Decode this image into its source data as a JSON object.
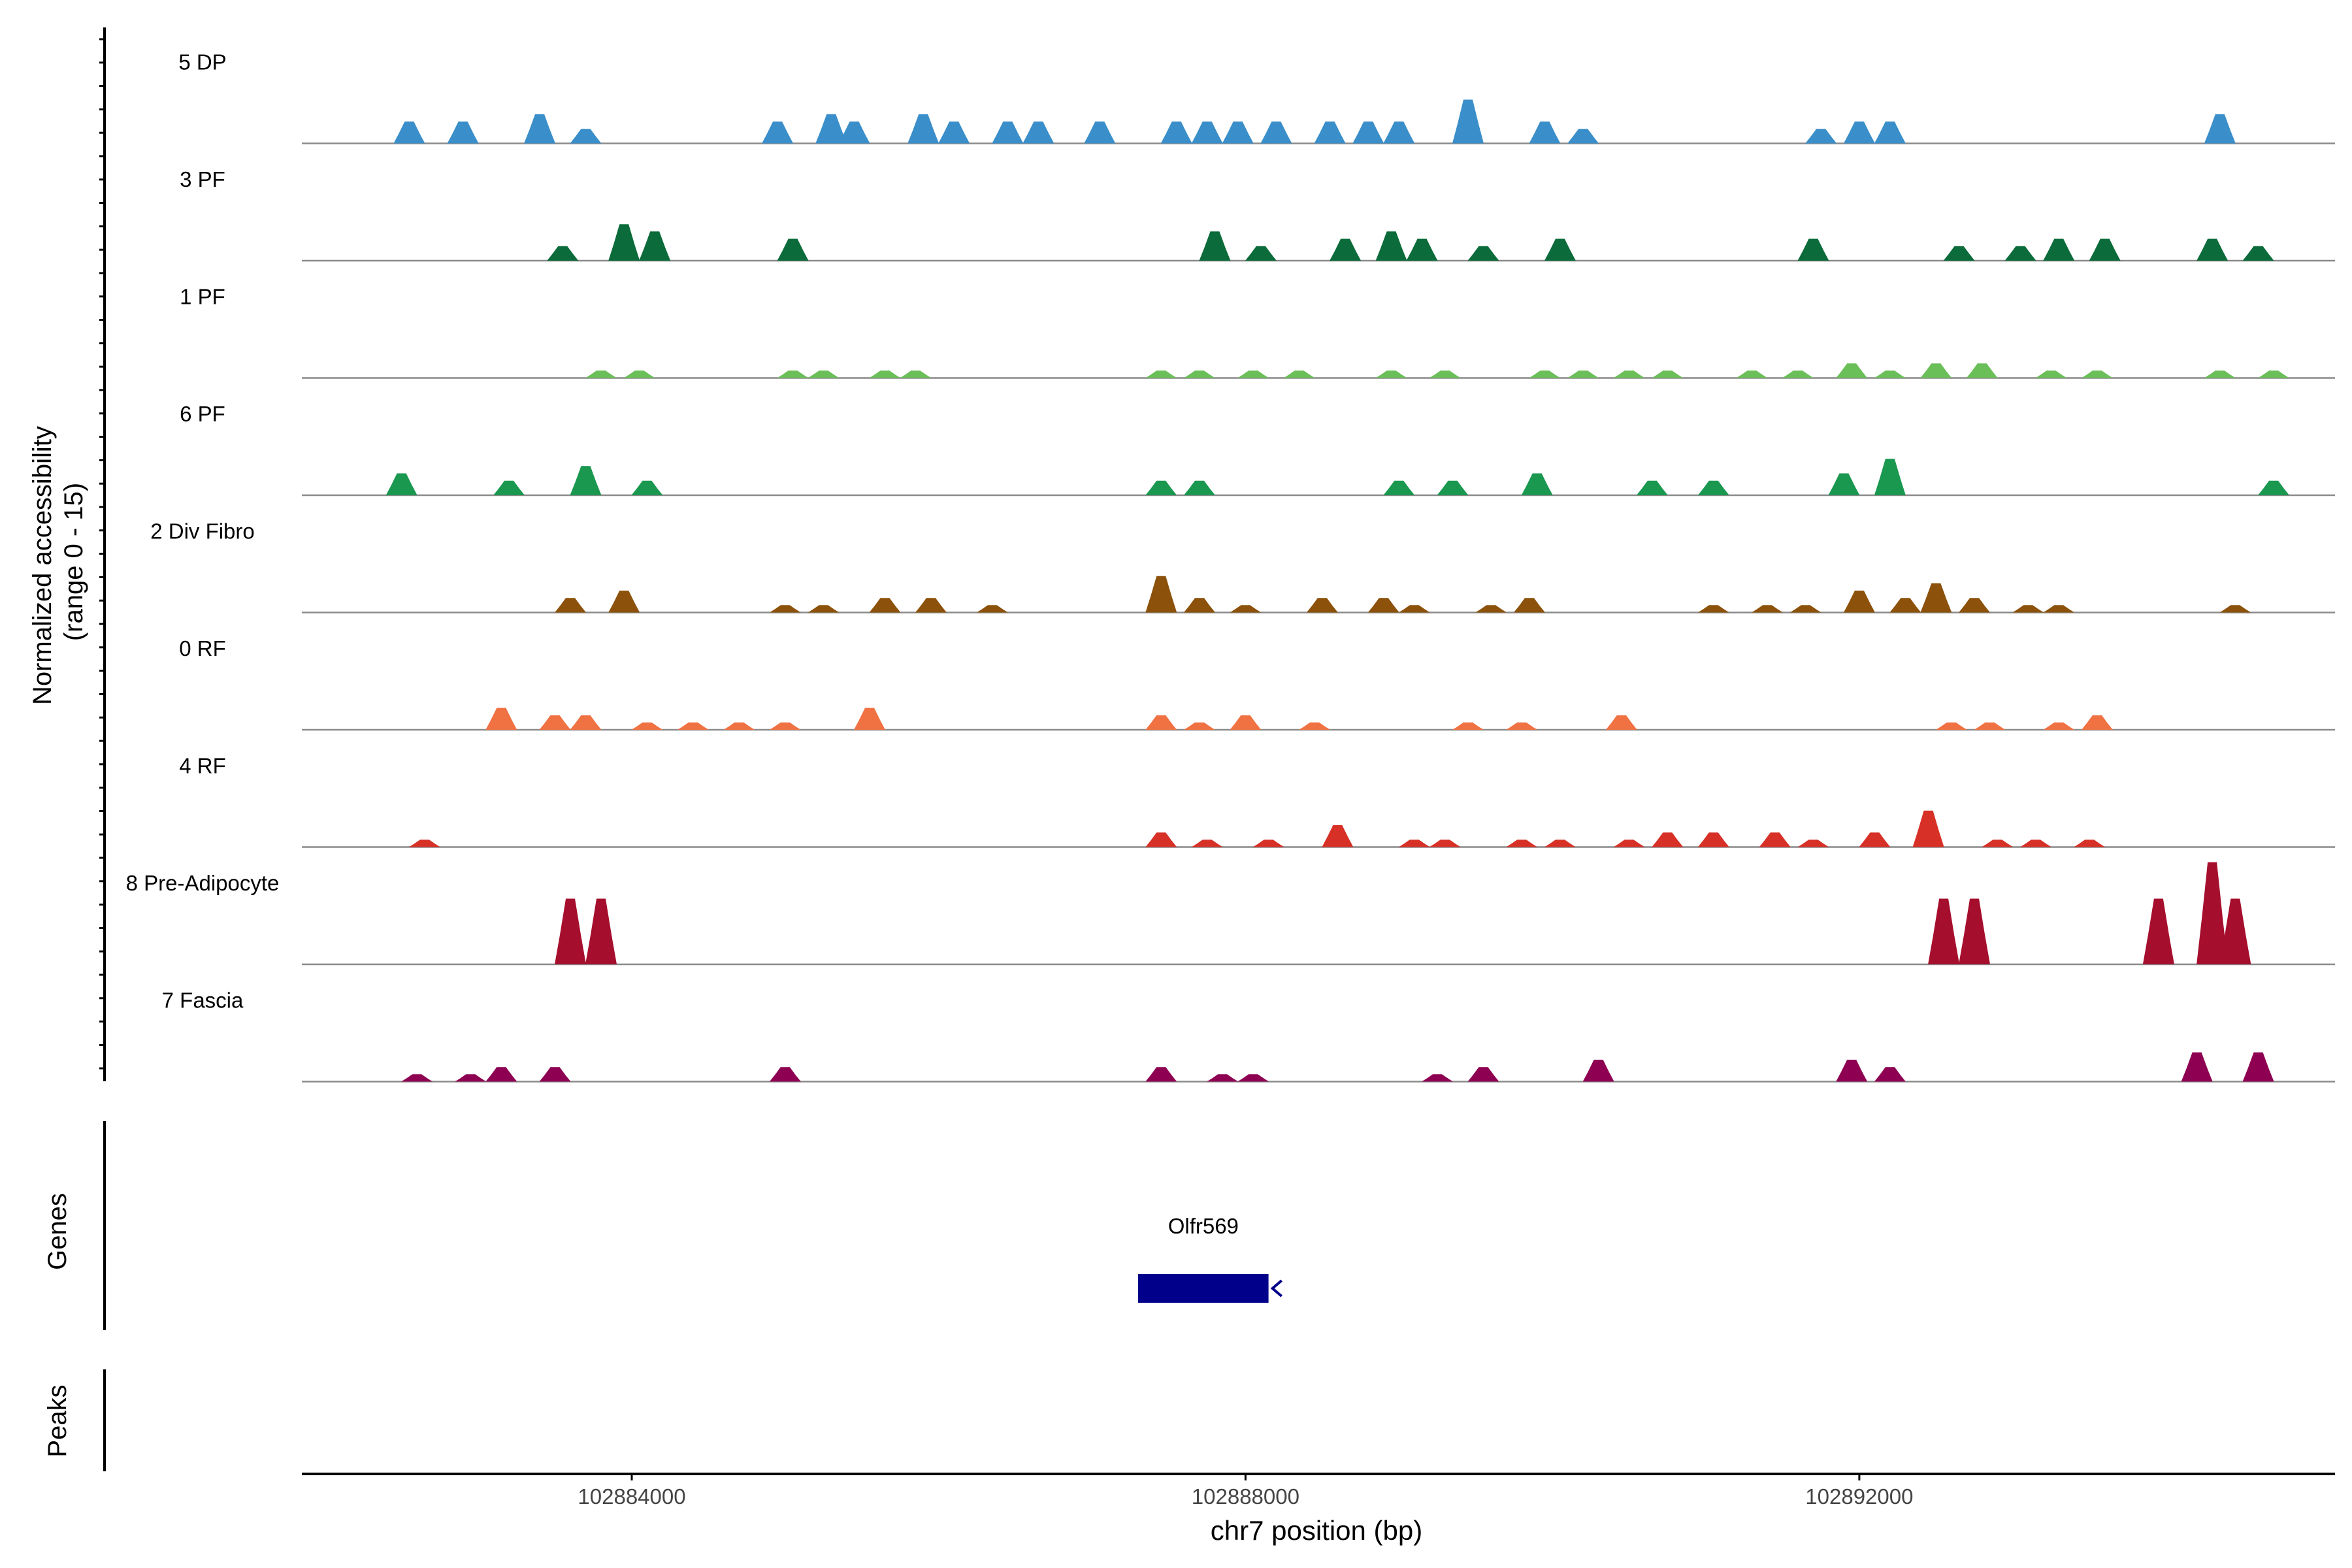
{
  "chart_data": {
    "type": "area",
    "title": "",
    "ylabel_line1": "Normalized accessibility",
    "ylabel_line2": "(range 0 - 15)",
    "ylim": [
      0,
      15
    ],
    "xlabel": "chr7 position (bp)",
    "xlim": [
      102881850,
      102895100
    ],
    "x_ticks": [
      {
        "value": 102884000,
        "label": "102884000"
      },
      {
        "value": 102888000,
        "label": "102888000"
      },
      {
        "value": 102892000,
        "label": "102892000"
      }
    ],
    "series": [
      {
        "name": "5 DP",
        "color": "#3a8ec9",
        "peaks": [
          [
            102882550,
            3
          ],
          [
            102882900,
            3
          ],
          [
            102883400,
            4
          ],
          [
            102883700,
            2
          ],
          [
            102884950,
            3
          ],
          [
            102885300,
            4
          ],
          [
            102885450,
            3
          ],
          [
            102885900,
            4
          ],
          [
            102886100,
            3
          ],
          [
            102886450,
            3
          ],
          [
            102886650,
            3
          ],
          [
            102887050,
            3
          ],
          [
            102887550,
            3
          ],
          [
            102887750,
            3
          ],
          [
            102887950,
            3
          ],
          [
            102888200,
            3
          ],
          [
            102888550,
            3
          ],
          [
            102888800,
            3
          ],
          [
            102889000,
            3
          ],
          [
            102889450,
            6
          ],
          [
            102889950,
            3
          ],
          [
            102890200,
            2
          ],
          [
            102891750,
            2
          ],
          [
            102892000,
            3
          ],
          [
            102892200,
            3
          ],
          [
            102894350,
            4
          ]
        ]
      },
      {
        "name": "3 PF",
        "color": "#0b6b3a",
        "peaks": [
          [
            102883550,
            2
          ],
          [
            102883950,
            5
          ],
          [
            102884150,
            4
          ],
          [
            102885050,
            3
          ],
          [
            102887800,
            4
          ],
          [
            102888100,
            2
          ],
          [
            102888650,
            3
          ],
          [
            102888950,
            4
          ],
          [
            102889150,
            3
          ],
          [
            102889550,
            2
          ],
          [
            102890050,
            3
          ],
          [
            102891700,
            3
          ],
          [
            102892650,
            2
          ],
          [
            102893050,
            2
          ],
          [
            102893300,
            3
          ],
          [
            102893600,
            3
          ],
          [
            102894300,
            3
          ],
          [
            102894600,
            2
          ]
        ]
      },
      {
        "name": "1 PF",
        "color": "#6bbf59",
        "peaks": [
          [
            102883800,
            1
          ],
          [
            102884050,
            1
          ],
          [
            102885050,
            1
          ],
          [
            102885250,
            1
          ],
          [
            102885650,
            1
          ],
          [
            102885850,
            1
          ],
          [
            102887450,
            1
          ],
          [
            102887700,
            1
          ],
          [
            102888050,
            1
          ],
          [
            102888350,
            1
          ],
          [
            102888950,
            1
          ],
          [
            102889300,
            1
          ],
          [
            102889950,
            1
          ],
          [
            102890200,
            1
          ],
          [
            102890500,
            1
          ],
          [
            102890750,
            1
          ],
          [
            102891300,
            1
          ],
          [
            102891600,
            1
          ],
          [
            102891950,
            2
          ],
          [
            102892200,
            1
          ],
          [
            102892500,
            2
          ],
          [
            102892800,
            2
          ],
          [
            102893250,
            1
          ],
          [
            102893550,
            1
          ],
          [
            102894350,
            1
          ],
          [
            102894700,
            1
          ]
        ]
      },
      {
        "name": "6 PF",
        "color": "#1a9850",
        "peaks": [
          [
            102882500,
            3
          ],
          [
            102883200,
            2
          ],
          [
            102883700,
            4
          ],
          [
            102884100,
            2
          ],
          [
            102887450,
            2
          ],
          [
            102887700,
            2
          ],
          [
            102889000,
            2
          ],
          [
            102889350,
            2
          ],
          [
            102889900,
            3
          ],
          [
            102890650,
            2
          ],
          [
            102891050,
            2
          ],
          [
            102891900,
            3
          ],
          [
            102892200,
            5
          ],
          [
            102894700,
            2
          ]
        ]
      },
      {
        "name": "2 Div Fibro",
        "color": "#8c510a",
        "peaks": [
          [
            102883600,
            2
          ],
          [
            102883950,
            3
          ],
          [
            102885000,
            1
          ],
          [
            102885250,
            1
          ],
          [
            102885650,
            2
          ],
          [
            102885950,
            2
          ],
          [
            102886350,
            1
          ],
          [
            102887450,
            5
          ],
          [
            102887700,
            2
          ],
          [
            102888000,
            1
          ],
          [
            102888500,
            2
          ],
          [
            102888900,
            2
          ],
          [
            102889100,
            1
          ],
          [
            102889600,
            1
          ],
          [
            102889850,
            2
          ],
          [
            102891050,
            1
          ],
          [
            102891400,
            1
          ],
          [
            102891650,
            1
          ],
          [
            102892000,
            3
          ],
          [
            102892300,
            2
          ],
          [
            102892500,
            4
          ],
          [
            102892750,
            2
          ],
          [
            102893100,
            1
          ],
          [
            102893300,
            1
          ],
          [
            102894450,
            1
          ]
        ]
      },
      {
        "name": "0 RF",
        "color": "#f07142",
        "peaks": [
          [
            102883150,
            3
          ],
          [
            102883500,
            2
          ],
          [
            102883700,
            2
          ],
          [
            102884100,
            1
          ],
          [
            102884400,
            1
          ],
          [
            102884700,
            1
          ],
          [
            102885000,
            1
          ],
          [
            102885550,
            3
          ],
          [
            102887450,
            2
          ],
          [
            102887700,
            1
          ],
          [
            102888000,
            2
          ],
          [
            102888450,
            1
          ],
          [
            102889450,
            1
          ],
          [
            102889800,
            1
          ],
          [
            102890450,
            2
          ],
          [
            102892600,
            1
          ],
          [
            102892850,
            1
          ],
          [
            102893300,
            1
          ],
          [
            102893550,
            2
          ]
        ]
      },
      {
        "name": "4 RF",
        "color": "#d73027",
        "peaks": [
          [
            102882650,
            1
          ],
          [
            102887450,
            2
          ],
          [
            102887750,
            1
          ],
          [
            102888150,
            1
          ],
          [
            102888600,
            3
          ],
          [
            102889100,
            1
          ],
          [
            102889300,
            1
          ],
          [
            102889800,
            1
          ],
          [
            102890050,
            1
          ],
          [
            102890500,
            1
          ],
          [
            102890750,
            2
          ],
          [
            102891050,
            2
          ],
          [
            102891450,
            2
          ],
          [
            102891700,
            1
          ],
          [
            102892100,
            2
          ],
          [
            102892450,
            5
          ],
          [
            102892900,
            1
          ],
          [
            102893150,
            1
          ],
          [
            102893500,
            1
          ]
        ]
      },
      {
        "name": "8 Pre-Adipocyte",
        "color": "#a50f2d",
        "peaks": [
          [
            102883600,
            9
          ],
          [
            102883800,
            9
          ],
          [
            102892550,
            9
          ],
          [
            102892750,
            9
          ],
          [
            102893950,
            9
          ],
          [
            102894300,
            14
          ],
          [
            102894450,
            9
          ]
        ]
      },
      {
        "name": "7 Fascia",
        "color": "#8e0152",
        "peaks": [
          [
            102882600,
            1
          ],
          [
            102882950,
            1
          ],
          [
            102883150,
            2
          ],
          [
            102883500,
            2
          ],
          [
            102885000,
            2
          ],
          [
            102887450,
            2
          ],
          [
            102887850,
            1
          ],
          [
            102888050,
            1
          ],
          [
            102889250,
            1
          ],
          [
            102889550,
            2
          ],
          [
            102890300,
            3
          ],
          [
            102891950,
            3
          ],
          [
            102892200,
            2
          ],
          [
            102894200,
            4
          ],
          [
            102894600,
            4
          ]
        ]
      }
    ],
    "genes": [
      {
        "name": "Olfr569",
        "start": 102887300,
        "end": 102888150,
        "strand": "-",
        "color": "#00008b"
      }
    ],
    "track_labels": {
      "genes": "Genes",
      "peaks": "Peaks"
    },
    "grid": false,
    "legend": "none"
  }
}
